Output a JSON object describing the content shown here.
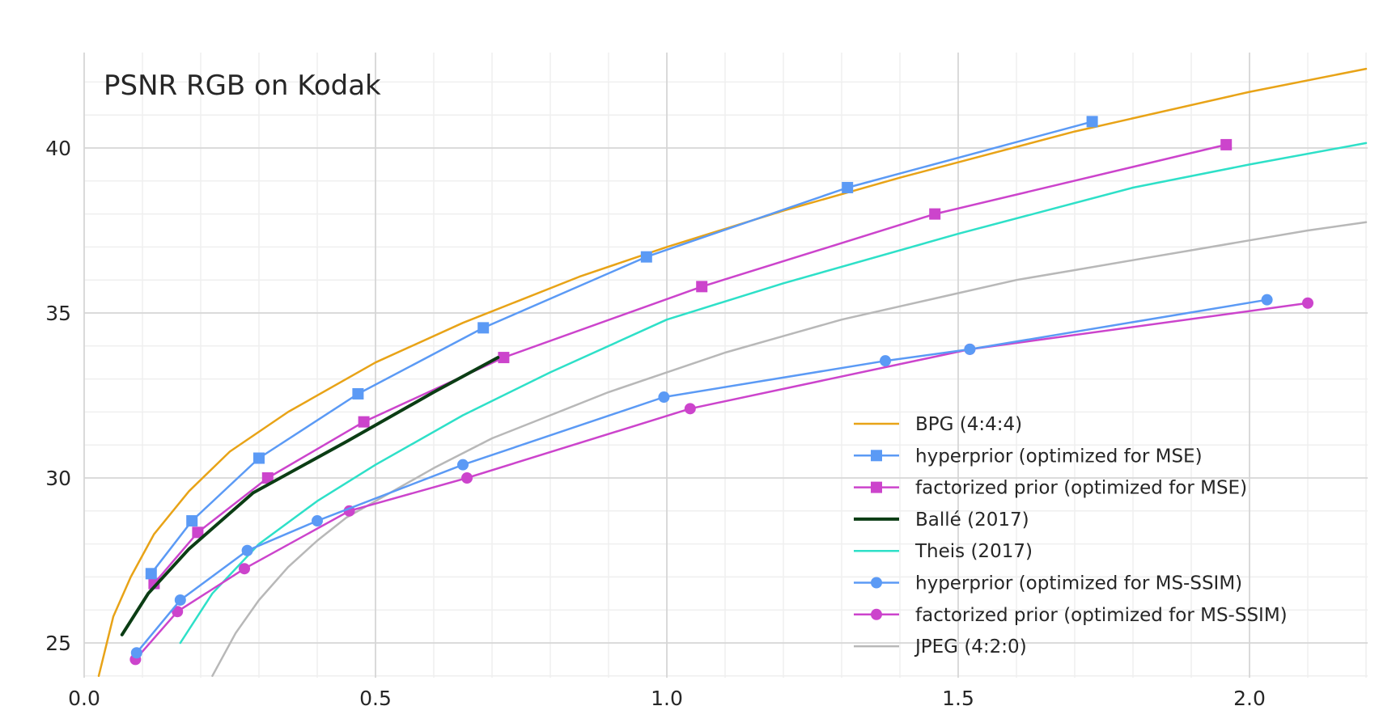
{
  "chart_data": {
    "type": "line",
    "title": "PSNR RGB on Kodak",
    "xlabel": "",
    "ylabel": "",
    "xlim": [
      0.0,
      2.2
    ],
    "ylim": [
      24.0,
      43.0
    ],
    "x_ticks": [
      {
        "value": 0.0,
        "label": "0.0"
      },
      {
        "value": 0.5,
        "label": "0.5"
      },
      {
        "value": 1.0,
        "label": "1.0"
      },
      {
        "value": 1.5,
        "label": "1.5"
      },
      {
        "value": 2.0,
        "label": "2.0"
      }
    ],
    "y_ticks": [
      {
        "value": 25,
        "label": "25"
      },
      {
        "value": 30,
        "label": "30"
      },
      {
        "value": 35,
        "label": "35"
      },
      {
        "value": 40,
        "label": "40"
      }
    ],
    "grid": true,
    "legend_position": "bottom-right",
    "series": [
      {
        "name": "BPG (4:4:4)",
        "color": "#e8a317",
        "marker": "none",
        "width": 2.5,
        "x": [
          0.025,
          0.05,
          0.08,
          0.12,
          0.18,
          0.25,
          0.35,
          0.5,
          0.65,
          0.85,
          1.0,
          1.2,
          1.4,
          1.7,
          2.0,
          2.2
        ],
        "y": [
          24.0,
          25.8,
          27.0,
          28.3,
          29.6,
          30.8,
          32.0,
          33.5,
          34.7,
          36.1,
          37.0,
          38.1,
          39.1,
          40.5,
          41.7,
          42.4
        ]
      },
      {
        "name": "hyperprior (optimized for MSE)",
        "color": "#5b9af5",
        "marker": "square",
        "width": 2.5,
        "x": [
          0.115,
          0.185,
          0.3,
          0.47,
          0.685,
          0.965,
          1.31,
          1.73
        ],
        "y": [
          27.1,
          28.7,
          30.6,
          32.55,
          34.55,
          36.7,
          38.8,
          40.8
        ]
      },
      {
        "name": "factorized prior (optimized for MSE)",
        "color": "#cc44cc",
        "marker": "square",
        "width": 2.5,
        "x": [
          0.12,
          0.195,
          0.315,
          0.48,
          0.72,
          1.06,
          1.46,
          1.96
        ],
        "y": [
          26.8,
          28.35,
          30.0,
          31.7,
          33.65,
          35.8,
          38.0,
          40.1
        ]
      },
      {
        "name": "Ballé (2017)",
        "color": "#0b3d14",
        "marker": "none",
        "width": 4,
        "x": [
          0.065,
          0.11,
          0.18,
          0.29,
          0.45,
          0.6,
          0.71
        ],
        "y": [
          25.25,
          26.5,
          27.85,
          29.55,
          31.1,
          32.6,
          33.65
        ]
      },
      {
        "name": "Theis (2017)",
        "color": "#2ee0c8",
        "marker": "none",
        "width": 2.5,
        "x": [
          0.165,
          0.22,
          0.3,
          0.4,
          0.5,
          0.65,
          0.8,
          1.0,
          1.2,
          1.5,
          1.8,
          2.0,
          2.2
        ],
        "y": [
          25.0,
          26.5,
          28.0,
          29.3,
          30.4,
          31.9,
          33.2,
          34.8,
          35.9,
          37.4,
          38.8,
          39.5,
          40.15
        ]
      },
      {
        "name": "hyperprior (optimized for MS-SSIM)",
        "color": "#5b9af5",
        "marker": "circle",
        "width": 2.5,
        "x": [
          0.09,
          0.165,
          0.28,
          0.4,
          0.65,
          0.995,
          1.375,
          1.52,
          2.03
        ],
        "y": [
          24.7,
          26.3,
          27.8,
          28.7,
          30.4,
          32.45,
          33.55,
          33.9,
          35.4
        ]
      },
      {
        "name": "factorized prior (optimized for MS-SSIM)",
        "color": "#cc44cc",
        "marker": "circle",
        "width": 2.5,
        "x": [
          0.088,
          0.16,
          0.275,
          0.455,
          0.657,
          1.04,
          1.52,
          2.1
        ],
        "y": [
          24.5,
          25.95,
          27.25,
          29.0,
          30.0,
          32.1,
          33.9,
          35.3
        ]
      },
      {
        "name": "JPEG (4:2:0)",
        "color": "#b8b8b8",
        "marker": "none",
        "width": 2.5,
        "x": [
          0.22,
          0.26,
          0.3,
          0.35,
          0.4,
          0.45,
          0.5,
          0.6,
          0.7,
          0.8,
          0.9,
          1.0,
          1.1,
          1.2,
          1.3,
          1.4,
          1.5,
          1.6,
          1.7,
          1.8,
          1.9,
          2.0,
          2.1,
          2.2
        ],
        "y": [
          24.0,
          25.3,
          26.3,
          27.3,
          28.1,
          28.8,
          29.3,
          30.3,
          31.2,
          31.9,
          32.6,
          33.2,
          33.8,
          34.3,
          34.8,
          35.2,
          35.6,
          36.0,
          36.3,
          36.6,
          36.9,
          37.2,
          37.5,
          37.75
        ]
      }
    ]
  }
}
